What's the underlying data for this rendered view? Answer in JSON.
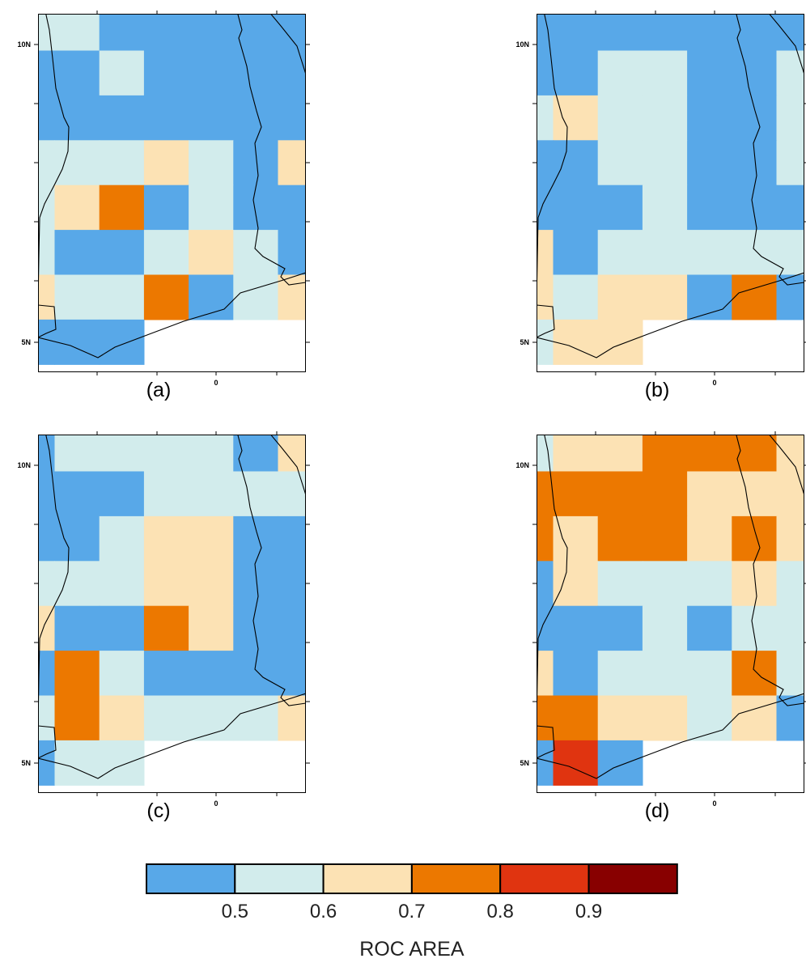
{
  "palette": [
    "#58a8e8",
    "#d2ecec",
    "#fce2b4",
    "#ec7800",
    "#e03410",
    "#880000"
  ],
  "panels": [
    {
      "label": "(a)",
      "lat_ticks": [
        "10N",
        "5N"
      ],
      "lon_tick": "0",
      "grid": [
        [
          1,
          1,
          0,
          0,
          0,
          0,
          0,
          0,
          -1
        ],
        [
          0,
          0,
          1,
          0,
          0,
          0,
          0,
          0,
          -1
        ],
        [
          0,
          0,
          0,
          0,
          0,
          0,
          0,
          0,
          -1
        ],
        [
          1,
          1,
          1,
          2,
          1,
          0,
          2,
          -1,
          -1
        ],
        [
          1,
          2,
          3,
          0,
          1,
          0,
          0,
          -1,
          -1
        ],
        [
          1,
          0,
          0,
          1,
          2,
          1,
          0,
          -1,
          -1
        ],
        [
          2,
          1,
          1,
          3,
          0,
          1,
          2,
          -1,
          -1
        ],
        [
          0,
          0,
          0,
          -1,
          -1,
          -1,
          -1,
          -1,
          -1
        ]
      ]
    },
    {
      "label": "(b)",
      "lat_ticks": [
        "10N",
        "5N"
      ],
      "lon_tick": "0",
      "grid": [
        [
          0,
          0,
          0,
          0,
          0,
          0,
          0,
          0,
          0
        ],
        [
          0,
          0,
          1,
          1,
          0,
          0,
          1,
          0,
          0
        ],
        [
          1,
          2,
          1,
          1,
          0,
          0,
          1,
          0,
          0
        ],
        [
          0,
          0,
          1,
          1,
          0,
          0,
          1,
          1,
          0
        ],
        [
          0,
          0,
          0,
          1,
          0,
          0,
          0,
          2,
          0
        ],
        [
          2,
          0,
          1,
          1,
          1,
          1,
          1,
          0,
          0
        ],
        [
          2,
          1,
          2,
          2,
          0,
          3,
          0,
          0,
          0
        ],
        [
          1,
          2,
          2,
          -1,
          -1,
          -1,
          -1,
          -1,
          -1
        ]
      ]
    },
    {
      "label": "(c)",
      "lat_ticks": [
        "10N",
        "5N"
      ],
      "lon_tick": "0",
      "grid": [
        [
          0,
          1,
          1,
          1,
          1,
          0,
          2,
          -1,
          -1
        ],
        [
          0,
          0,
          0,
          1,
          1,
          1,
          1,
          -1,
          -1
        ],
        [
          0,
          0,
          1,
          2,
          2,
          0,
          0,
          -1,
          -1
        ],
        [
          1,
          1,
          1,
          2,
          2,
          0,
          0,
          -1,
          -1
        ],
        [
          2,
          0,
          0,
          3,
          2,
          0,
          0,
          -1,
          -1
        ],
        [
          0,
          3,
          1,
          0,
          0,
          0,
          0,
          -1,
          -1
        ],
        [
          1,
          3,
          2,
          1,
          1,
          1,
          2,
          -1,
          -1
        ],
        [
          0,
          1,
          1,
          -1,
          -1,
          -1,
          -1,
          -1,
          -1
        ]
      ]
    },
    {
      "label": "(d)",
      "lat_ticks": [
        "10N",
        "5N"
      ],
      "lon_tick": "0",
      "grid": [
        [
          1,
          2,
          2,
          3,
          3,
          3,
          2,
          -1,
          -1
        ],
        [
          3,
          3,
          3,
          3,
          2,
          2,
          2,
          -1,
          -1
        ],
        [
          3,
          2,
          3,
          3,
          2,
          3,
          2,
          -1,
          -1
        ],
        [
          0,
          2,
          1,
          1,
          1,
          2,
          1,
          -1,
          -1
        ],
        [
          0,
          0,
          0,
          1,
          0,
          1,
          1,
          -1,
          -1
        ],
        [
          2,
          0,
          1,
          1,
          1,
          3,
          1,
          -1,
          -1
        ],
        [
          3,
          3,
          2,
          2,
          1,
          2,
          0,
          -1,
          -1
        ],
        [
          0,
          4,
          0,
          -1,
          -1,
          -1,
          -1,
          -1,
          -1
        ]
      ]
    }
  ],
  "colorbar": {
    "tick_labels": [
      "0.5",
      "0.6",
      "0.7",
      "0.8",
      "0.9"
    ],
    "title": "ROC AREA"
  }
}
